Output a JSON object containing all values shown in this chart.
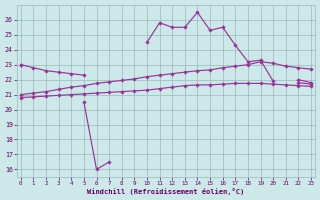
{
  "x": [
    0,
    1,
    2,
    3,
    4,
    5,
    6,
    7,
    8,
    9,
    10,
    11,
    12,
    13,
    14,
    15,
    16,
    17,
    18,
    19,
    20,
    21,
    22,
    23
  ],
  "line_main": [
    23.0,
    null,
    null,
    null,
    null,
    20.5,
    16.0,
    16.5,
    null,
    null,
    24.5,
    25.8,
    25.5,
    25.5,
    26.5,
    25.3,
    25.5,
    24.3,
    23.2,
    23.3,
    21.9,
    null,
    21.8,
    21.7
  ],
  "line_upper": [
    23.0,
    22.8,
    22.6,
    22.5,
    22.4,
    22.3,
    null,
    null,
    null,
    null,
    null,
    null,
    null,
    null,
    null,
    null,
    null,
    null,
    null,
    null,
    null,
    null,
    22.0,
    21.8
  ],
  "line_mid": [
    21.0,
    21.1,
    21.2,
    21.35,
    21.5,
    21.6,
    21.75,
    21.85,
    21.95,
    22.05,
    22.2,
    22.3,
    22.4,
    22.5,
    22.6,
    22.65,
    22.8,
    22.9,
    23.0,
    23.2,
    23.1,
    22.9,
    22.8,
    22.7
  ],
  "line_low": [
    20.8,
    20.85,
    20.9,
    20.95,
    21.0,
    21.05,
    21.1,
    21.15,
    21.2,
    21.25,
    21.3,
    21.4,
    21.5,
    21.6,
    21.65,
    21.65,
    21.7,
    21.75,
    21.75,
    21.75,
    21.7,
    21.65,
    21.6,
    21.55
  ],
  "ylim": [
    15.5,
    27
  ],
  "xlim": [
    -0.3,
    23.3
  ],
  "yticks": [
    16,
    17,
    18,
    19,
    20,
    21,
    22,
    23,
    24,
    25,
    26
  ],
  "xticks": [
    0,
    1,
    2,
    3,
    4,
    5,
    6,
    7,
    8,
    9,
    10,
    11,
    12,
    13,
    14,
    15,
    16,
    17,
    18,
    19,
    20,
    21,
    22,
    23
  ],
  "xlabel": "Windchill (Refroidissement éolien,°C)",
  "bg_color": "#cce8e8",
  "line_color": "#993399",
  "grid_color": "#99bbbb",
  "font_color": "#660066"
}
